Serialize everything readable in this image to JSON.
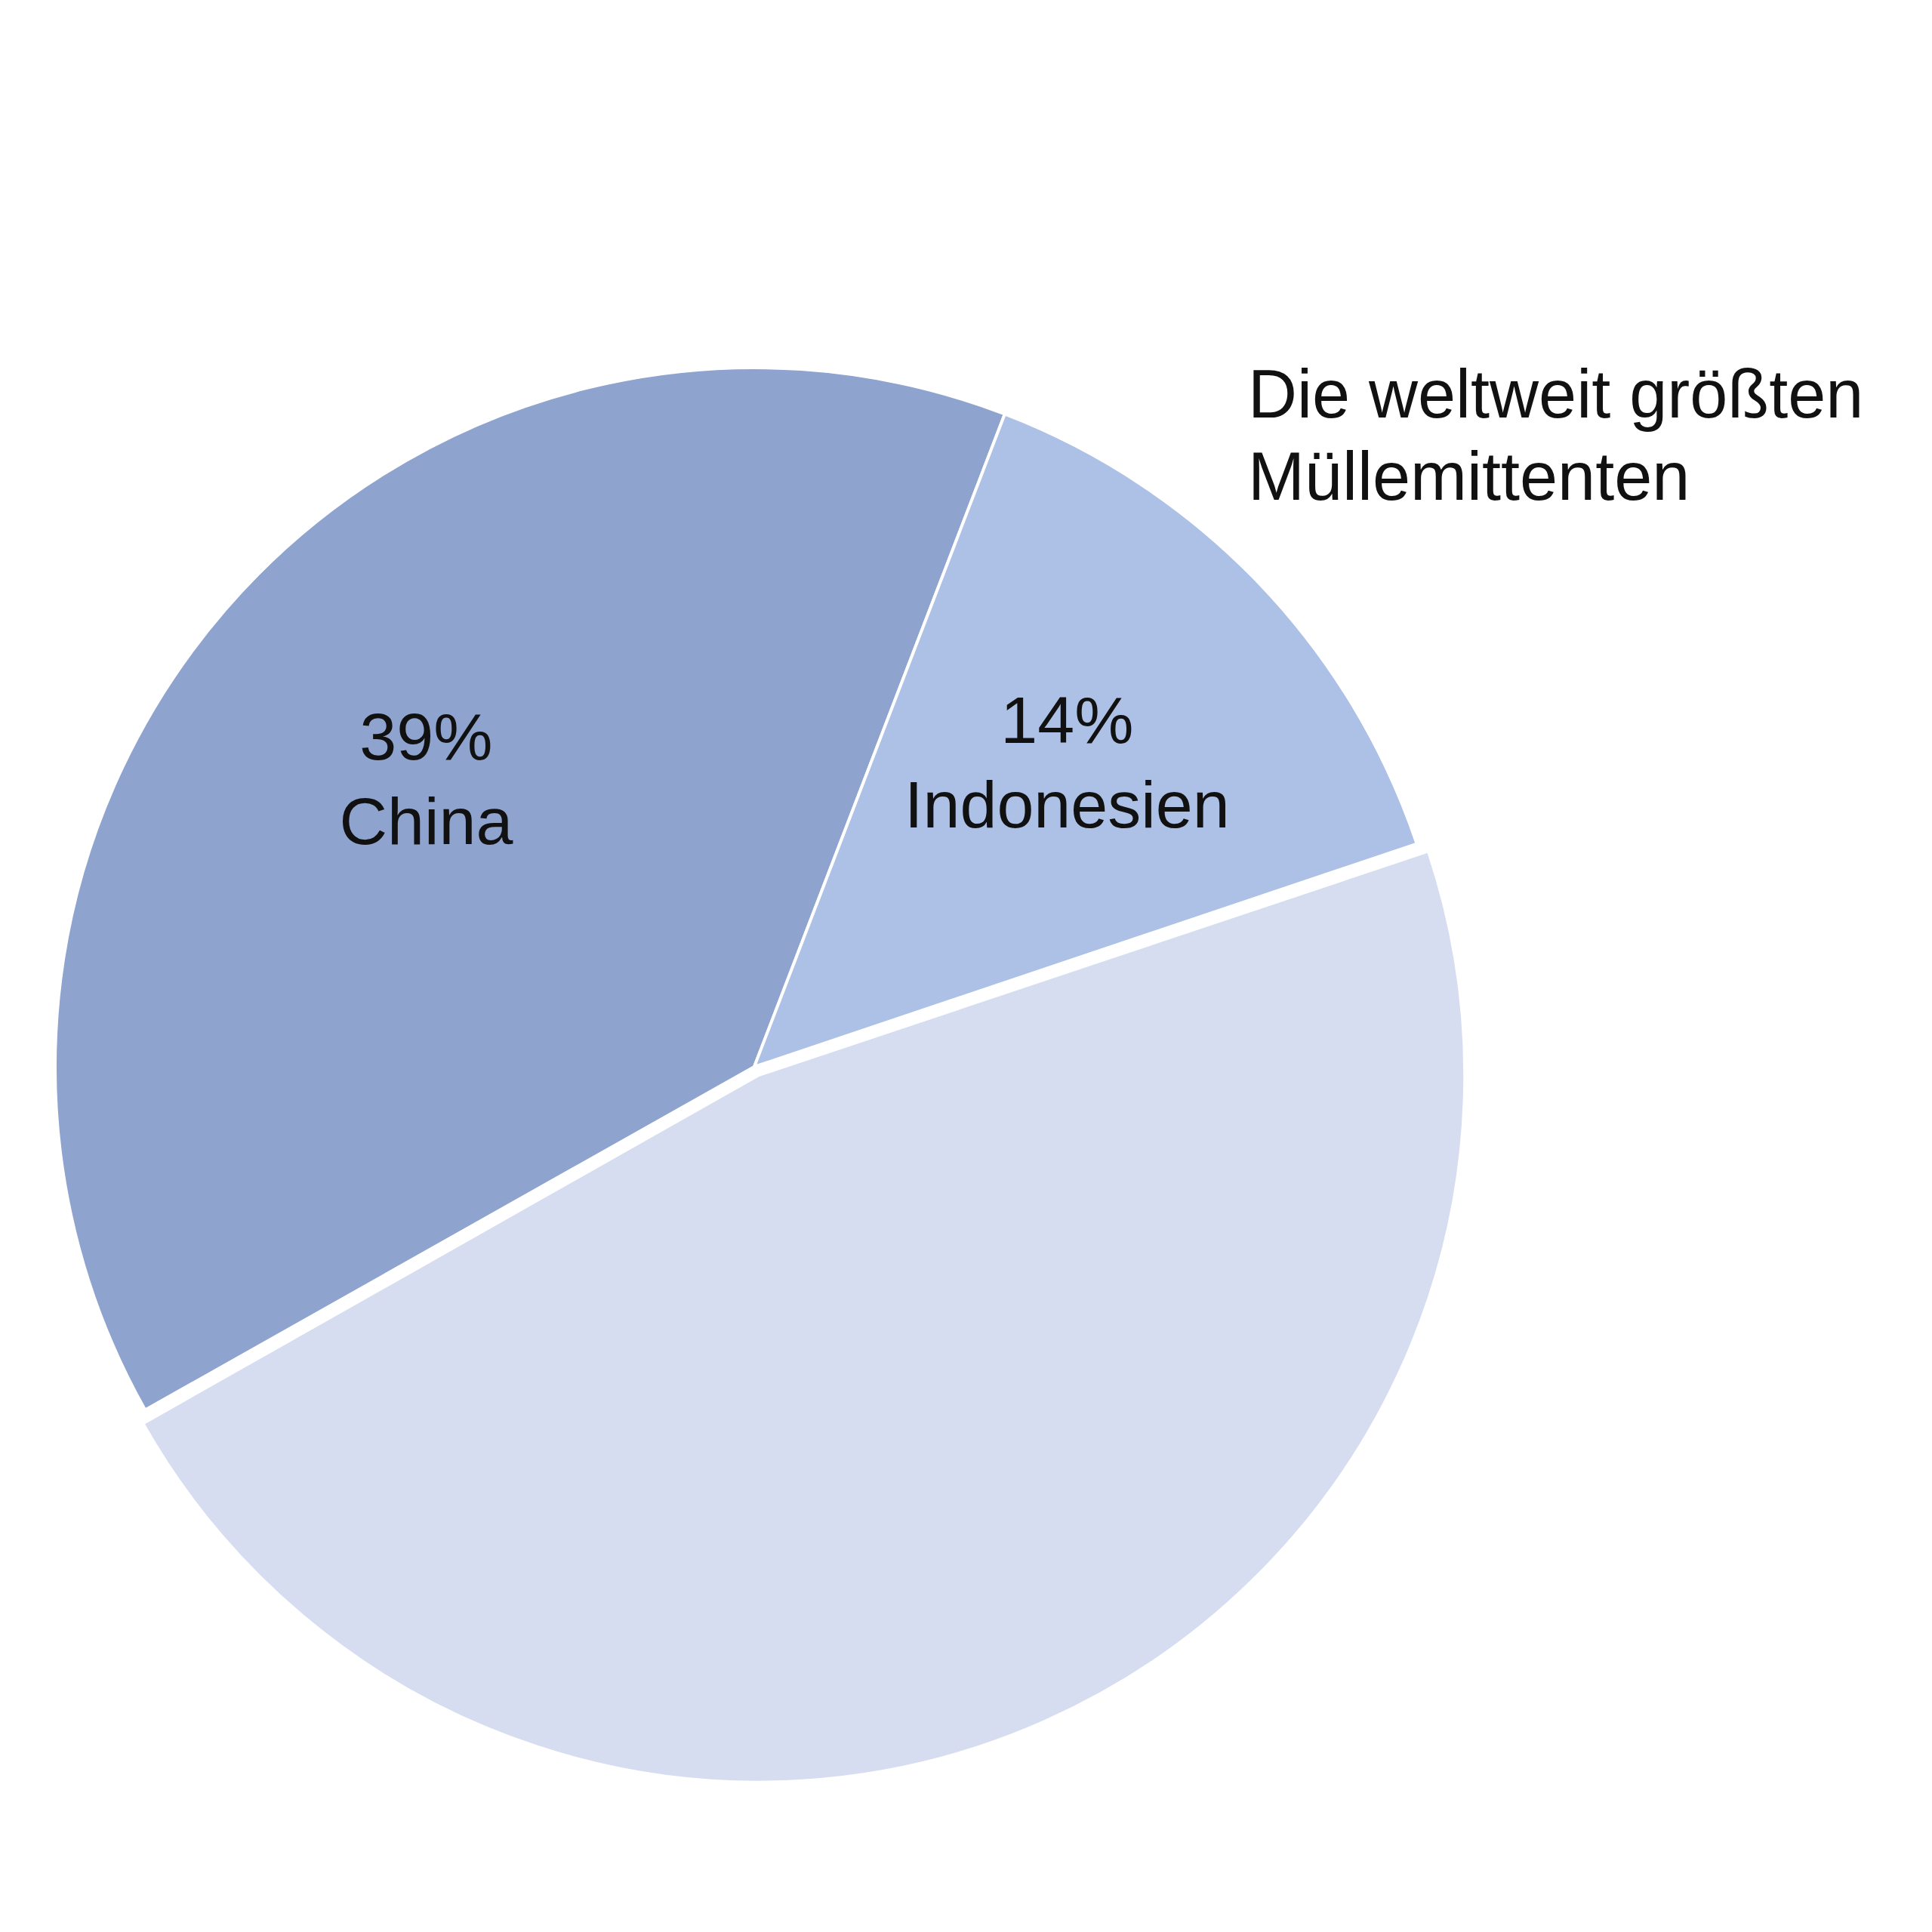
{
  "chart_data": {
    "type": "pie",
    "title": "Die weltweit größten Müllemittenten",
    "categories": [
      "China",
      "Indonesien",
      null
    ],
    "values": [
      39,
      14,
      47
    ],
    "colors": [
      "#8fa3cf",
      "#adc0e6",
      "#d6ddf0"
    ],
    "value_labels": [
      "39%",
      "14%",
      null
    ],
    "legend": false
  }
}
